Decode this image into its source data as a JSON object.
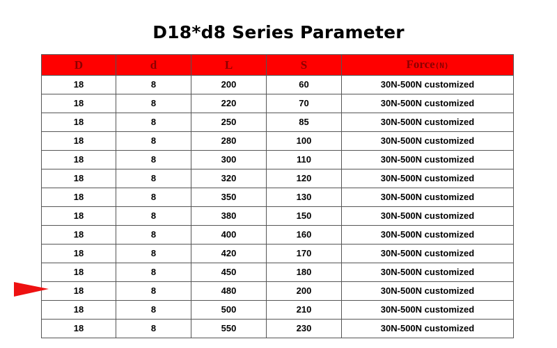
{
  "title": "D18*d8 Series Parameter",
  "colors": {
    "header_bg": "#ff0000",
    "header_text": "#8b0000",
    "border": "#555555",
    "marker": "#ee1111"
  },
  "table": {
    "headers": [
      {
        "label": "D",
        "unit": ""
      },
      {
        "label": "d",
        "unit": ""
      },
      {
        "label": "L",
        "unit": ""
      },
      {
        "label": "S",
        "unit": ""
      },
      {
        "label": "Force",
        "unit": "(N)"
      }
    ],
    "rows": [
      [
        "18",
        "8",
        "200",
        "60",
        "30N-500N customized"
      ],
      [
        "18",
        "8",
        "220",
        "70",
        "30N-500N customized"
      ],
      [
        "18",
        "8",
        "250",
        "85",
        "30N-500N customized"
      ],
      [
        "18",
        "8",
        "280",
        "100",
        "30N-500N customized"
      ],
      [
        "18",
        "8",
        "300",
        "110",
        "30N-500N customized"
      ],
      [
        "18",
        "8",
        "320",
        "120",
        "30N-500N customized"
      ],
      [
        "18",
        "8",
        "350",
        "130",
        "30N-500N customized"
      ],
      [
        "18",
        "8",
        "380",
        "150",
        "30N-500N customized"
      ],
      [
        "18",
        "8",
        "400",
        "160",
        "30N-500N customized"
      ],
      [
        "18",
        "8",
        "420",
        "170",
        "30N-500N customized"
      ],
      [
        "18",
        "8",
        "450",
        "180",
        "30N-500N customized"
      ],
      [
        "18",
        "8",
        "480",
        "200",
        "30N-500N customized"
      ],
      [
        "18",
        "8",
        "500",
        "210",
        "30N-500N customized"
      ],
      [
        "18",
        "8",
        "550",
        "230",
        "30N-500N customized"
      ]
    ],
    "marked_row": 11
  },
  "icons": {
    "marker": "red-arrow-pointer-icon"
  }
}
